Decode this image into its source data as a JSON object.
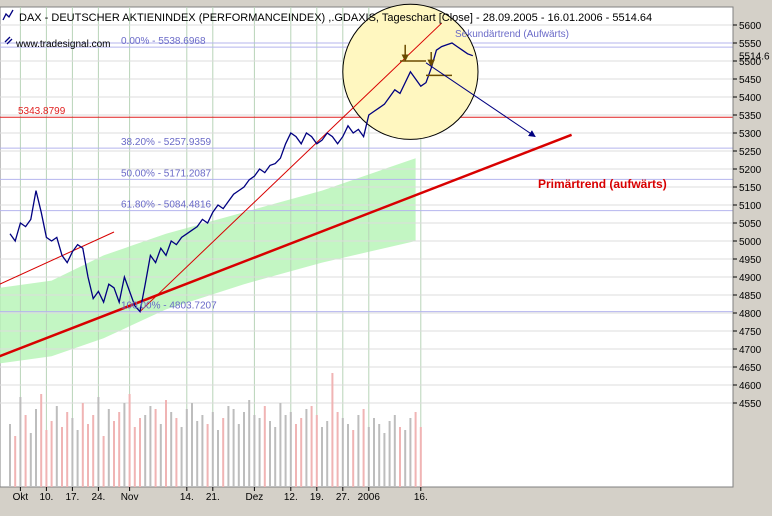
{
  "header": {
    "title": "DAX  - DEUTSCHER AKTIENINDEX (PERFORMANCEINDEX) ,.GDAXIS, Tageschart [Close] - 28.09.2005 - 16.01.2006 - 5514.64",
    "source": "www.tradesignal.com"
  },
  "colors": {
    "background": "#ffffff",
    "grid_horizontal": "#b4b4ee",
    "grid_vertical": "#b8d4b8",
    "price_line": "#000080",
    "fib_label": "#6a6ac8",
    "primary_trend": "#d80000",
    "resistance": "#e02020",
    "channel_fill": "#b8f5b8",
    "circle_fill": "#fff7c0",
    "volume_up": "#bdbdbd",
    "volume_down": "#f0b4b4"
  },
  "chart_data": {
    "type": "line",
    "series": [
      {
        "values": [
          5020,
          5000,
          5050,
          5040,
          5060,
          5140,
          5080,
          5010,
          5000,
          5010,
          4960,
          4940,
          4970,
          4990,
          4980,
          4900,
          4840,
          4860,
          4830,
          4880,
          4870,
          4830,
          4900,
          4860,
          4820,
          4804,
          4880,
          4960,
          4940,
          4980,
          4960,
          5000,
          4990,
          5010,
          5020,
          5030,
          5040,
          5060,
          5050,
          5080,
          5100,
          5090,
          5110,
          5130,
          5140,
          5150,
          5170,
          5180,
          5200,
          5190,
          5210,
          5215,
          5230,
          5270,
          5300,
          5290,
          5270,
          5300,
          5290,
          5270,
          5280,
          5300,
          5290,
          5270,
          5290,
          5320,
          5300,
          5310,
          5290,
          5350,
          5360,
          5370,
          5380,
          5400,
          5420,
          5410,
          5440,
          5470,
          5450,
          5430,
          5440,
          5480,
          5530,
          5540,
          5545,
          5550,
          5540,
          5530,
          5520,
          5514.64
        ]
      }
    ],
    "y_axis": {
      "ticks": [
        4550,
        4600,
        4650,
        4700,
        4750,
        4800,
        4850,
        4900,
        4950,
        5000,
        5050,
        5100,
        5150,
        5200,
        5250,
        5300,
        5350,
        5400,
        5450,
        5500,
        5550,
        5600
      ],
      "last_value_label": "5514.6"
    },
    "x_axis": {
      "ticks": [
        {
          "label": "Okt",
          "index": 2
        },
        {
          "label": "10.",
          "index": 7
        },
        {
          "label": "17.",
          "index": 12
        },
        {
          "label": "24.",
          "index": 17
        },
        {
          "label": "Nov",
          "index": 23
        },
        {
          "label": "14.",
          "index": 34
        },
        {
          "label": "21.",
          "index": 39
        },
        {
          "label": "Dez",
          "index": 47
        },
        {
          "label": "12.",
          "index": 54
        },
        {
          "label": "19.",
          "index": 59
        },
        {
          "label": "27.",
          "index": 64
        },
        {
          "label": "2006",
          "index": 69
        },
        {
          "label": "16.",
          "index": 79
        }
      ]
    },
    "fibonacci_levels": [
      {
        "label": "0.00% - 5538.6968",
        "value": 5538.6968
      },
      {
        "label": "38.20% - 5257.9359",
        "value": 5257.9359
      },
      {
        "label": "50.00% - 5171.2087",
        "value": 5171.2087
      },
      {
        "label": "61.80% - 5084.4816",
        "value": 5084.4816
      },
      {
        "label": "100.00% - 4803.7207",
        "value": 4803.7207
      }
    ],
    "resistance": {
      "label": "5343.8799",
      "value": 5343.8799
    },
    "upper_line": {
      "value": 5550
    },
    "trendlines": {
      "primary": {
        "label": "Primärtrend (aufwärts)",
        "start": [
          -2,
          4680
        ],
        "end": [
          108,
          5295
        ]
      },
      "secondary": {
        "label": "Sekundärtrend (Aufwärts)",
        "start": [
          25,
          4804
        ],
        "end": [
          83,
          5605
        ]
      },
      "early": {
        "start": [
          -2,
          4880
        ],
        "end": [
          20,
          5025
        ]
      }
    },
    "channel": {
      "upper": [
        [
          -2,
          4870
        ],
        [
          8,
          4890
        ],
        [
          18,
          4960
        ],
        [
          30,
          5020
        ],
        [
          45,
          5080
        ],
        [
          60,
          5140
        ],
        [
          78,
          5230
        ]
      ],
      "lower": [
        [
          78,
          5000
        ],
        [
          60,
          4940
        ],
        [
          45,
          4880
        ],
        [
          30,
          4810
        ],
        [
          18,
          4730
        ],
        [
          8,
          4680
        ],
        [
          -2,
          4660
        ]
      ]
    },
    "volume": [
      210,
      170,
      300,
      240,
      180,
      260,
      310,
      190,
      220,
      270,
      200,
      250,
      230,
      190,
      280,
      210,
      240,
      300,
      170,
      260,
      220,
      250,
      280,
      310,
      200,
      230,
      240,
      270,
      260,
      210,
      290,
      250,
      230,
      200,
      260,
      280,
      220,
      240,
      210,
      250,
      190,
      230,
      270,
      260,
      210,
      250,
      290,
      240,
      230,
      270,
      220,
      200,
      280,
      240,
      250,
      210,
      230,
      260,
      270,
      240,
      200,
      220,
      380,
      250,
      230,
      210,
      190,
      240,
      260,
      200,
      230,
      210,
      180,
      220,
      240,
      200,
      190,
      230,
      250,
      200
    ],
    "annotation_arrow": {
      "from": [
        80,
        5495
      ],
      "to": [
        101,
        5290
      ]
    },
    "highlight_circle": {
      "center": [
        77,
        5470
      ],
      "radius_bars": 13
    }
  }
}
